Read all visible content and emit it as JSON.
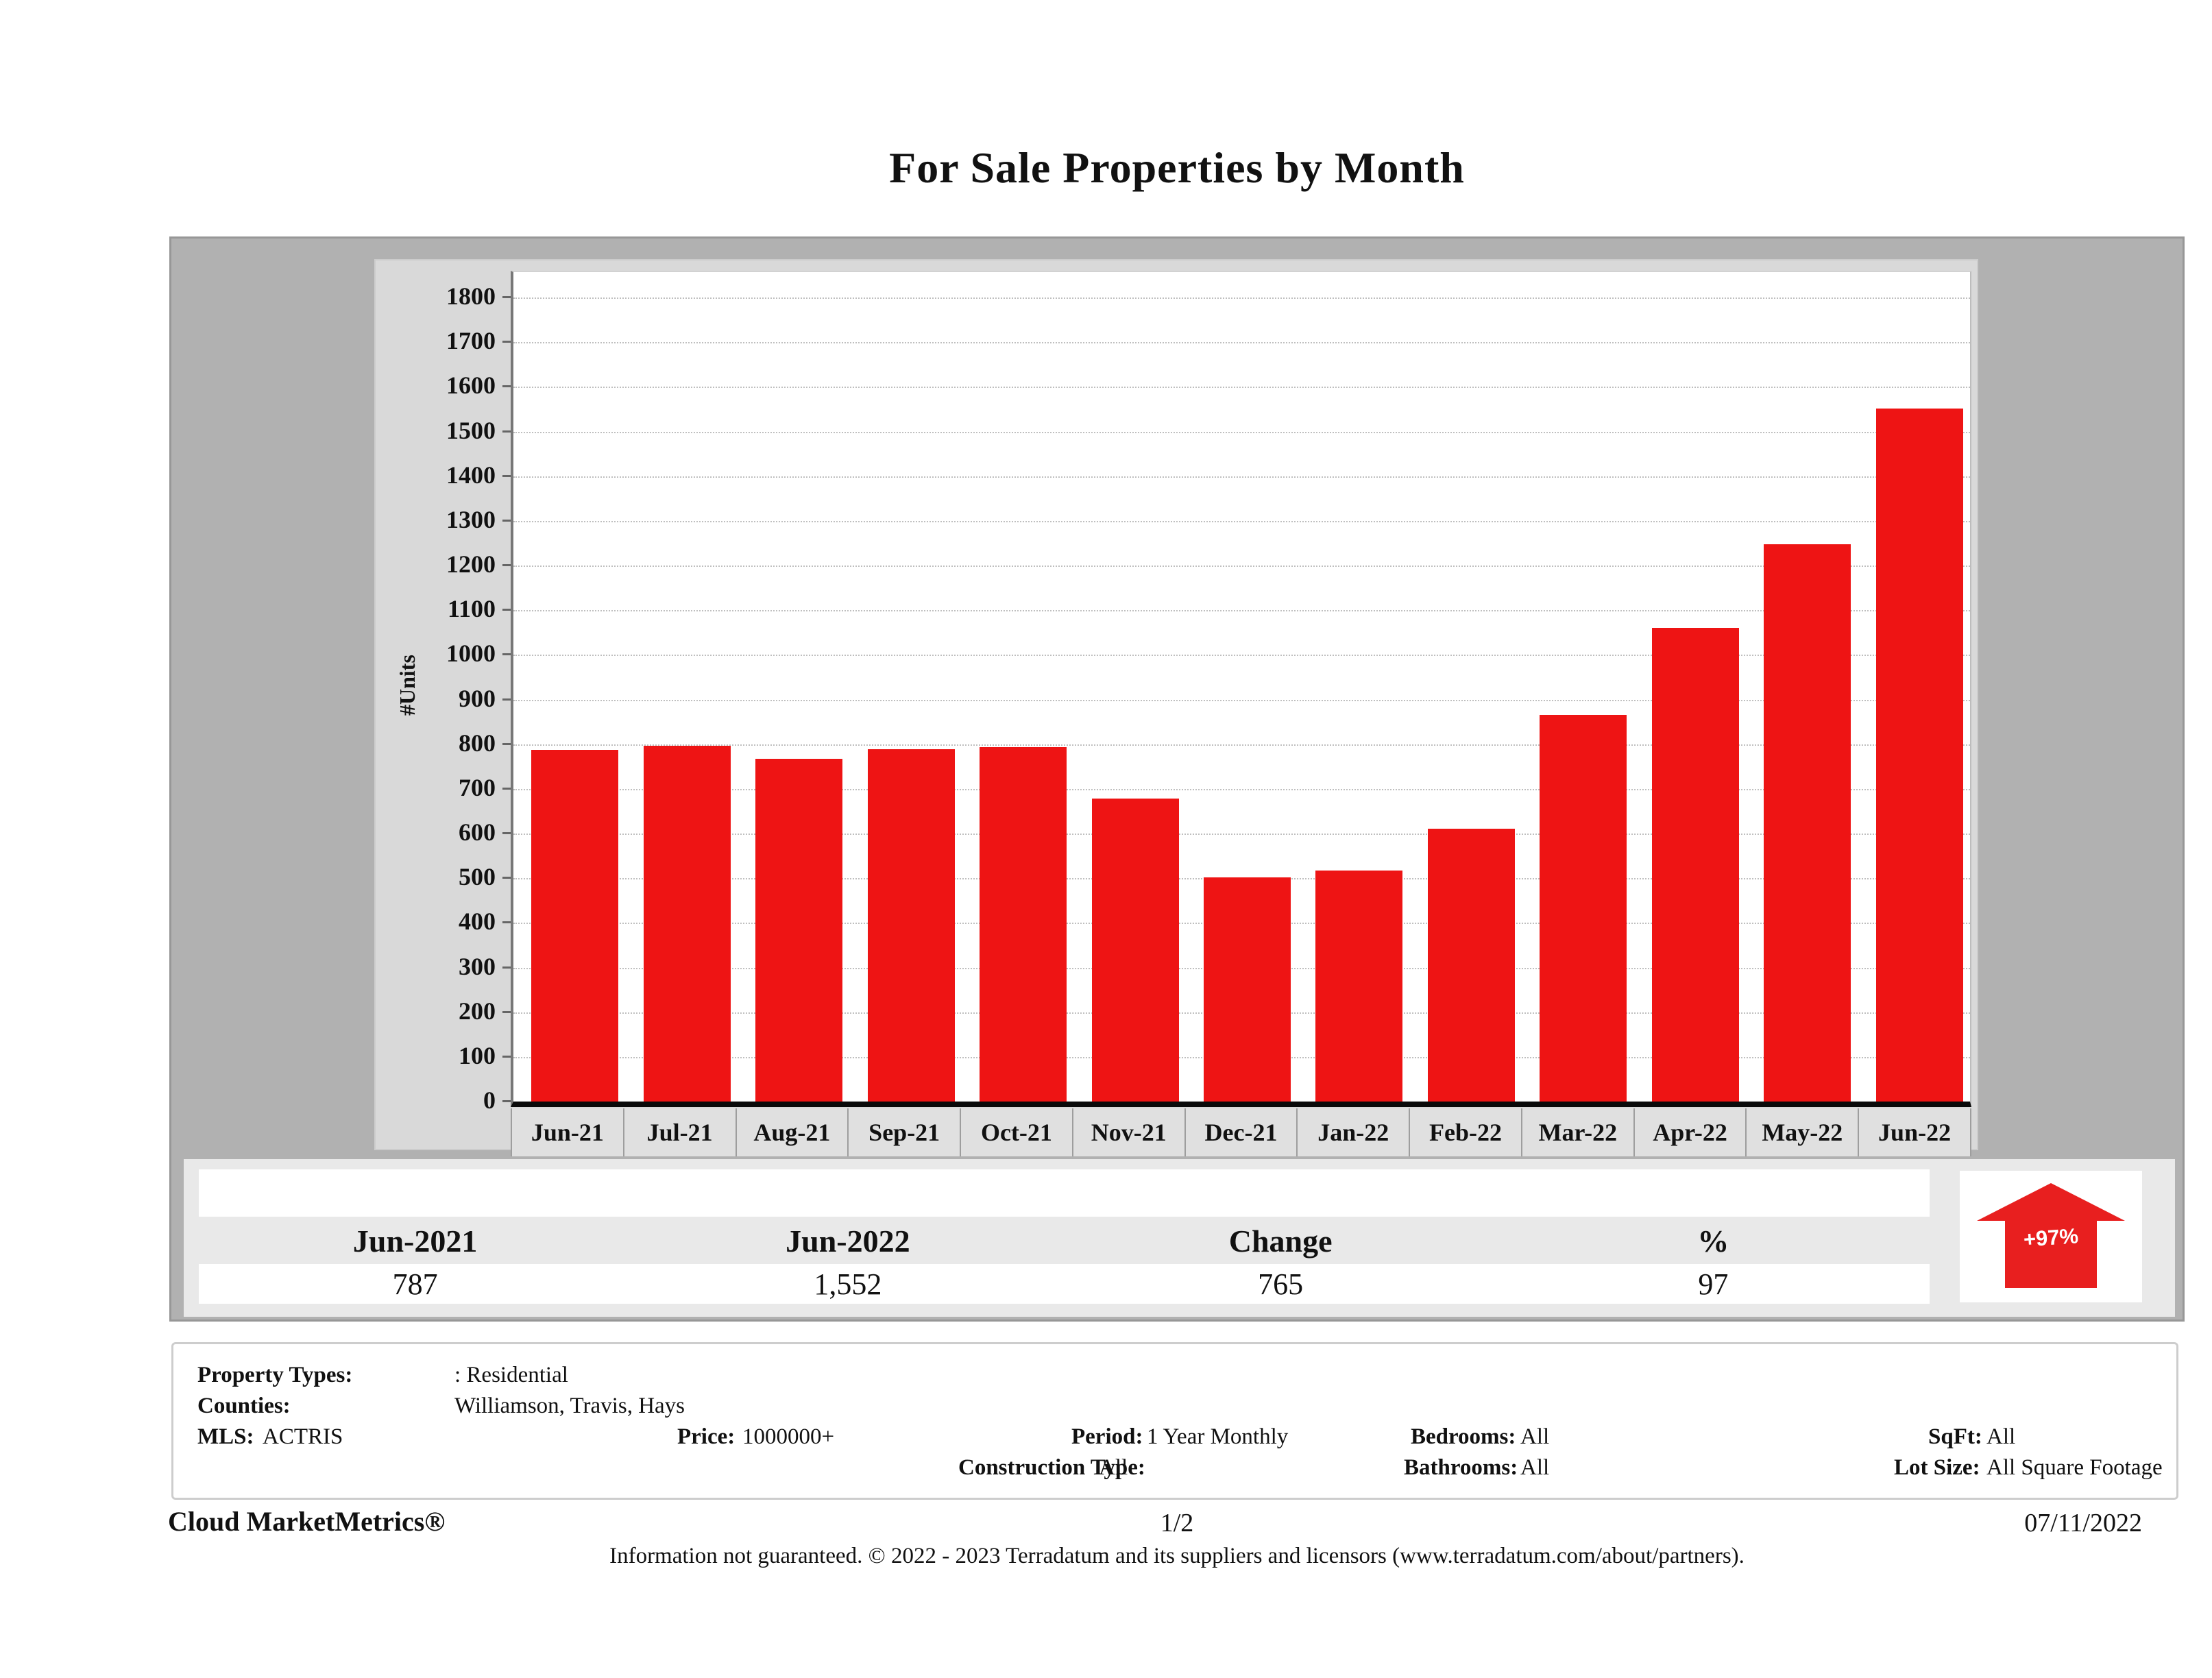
{
  "title": "For Sale Properties by Month",
  "chart_data": {
    "type": "bar",
    "title": "For Sale Properties by Month",
    "categories": [
      "Jun-21",
      "Jul-21",
      "Aug-21",
      "Sep-21",
      "Oct-21",
      "Nov-21",
      "Dec-21",
      "Jan-22",
      "Feb-22",
      "Mar-22",
      "Apr-22",
      "May-22",
      "Jun-22"
    ],
    "values": [
      787,
      797,
      767,
      788,
      793,
      678,
      502,
      517,
      611,
      866,
      1060,
      1247,
      1552
    ],
    "ylabel": "#Units",
    "xlabel": "",
    "ylim": [
      0,
      1800
    ],
    "ytick_step": 100,
    "grid": "horizontal-dotted",
    "legend": "none",
    "bar_color": "#ee1414"
  },
  "summary_table": {
    "headers": [
      "Jun-2021",
      "Jun-2022",
      "Change",
      "%"
    ],
    "values": [
      "787",
      "1,552",
      "765",
      "97"
    ],
    "arrow_badge": "+97%"
  },
  "filters": {
    "property_types": {
      "label": "Property Types:",
      "value": ": Residential"
    },
    "counties": {
      "label": "Counties:",
      "value": "Williamson, Travis, Hays"
    },
    "mls": {
      "label": "MLS:",
      "value": "ACTRIS"
    },
    "price": {
      "label": "Price:",
      "value": "1000000+"
    },
    "period": {
      "label": "Period:",
      "value": "1 Year Monthly"
    },
    "construction_type": {
      "label": "Construction Type:",
      "value": "All"
    },
    "bedrooms": {
      "label": "Bedrooms:",
      "value": "All"
    },
    "bathrooms": {
      "label": "Bathrooms:",
      "value": "All"
    },
    "sqft": {
      "label": "SqFt:",
      "value": "All"
    },
    "lot_size": {
      "label": "Lot Size:",
      "value": "All Square Footage"
    }
  },
  "footer": {
    "brand": "Cloud MarketMetrics®",
    "page": "1/2",
    "date": "07/11/2022",
    "disclaimer": "Information not guaranteed. © 2022 - 2023 Terradatum and its suppliers and licensors (www.terradatum.com/about/partners)."
  },
  "colors": {
    "bar": "#ee1414",
    "arrow": "#e81f1f",
    "outer_panel": "#b1b1b1",
    "chart_panel": "#d9d9d9",
    "summary_panel": "#e9e9e9"
  }
}
